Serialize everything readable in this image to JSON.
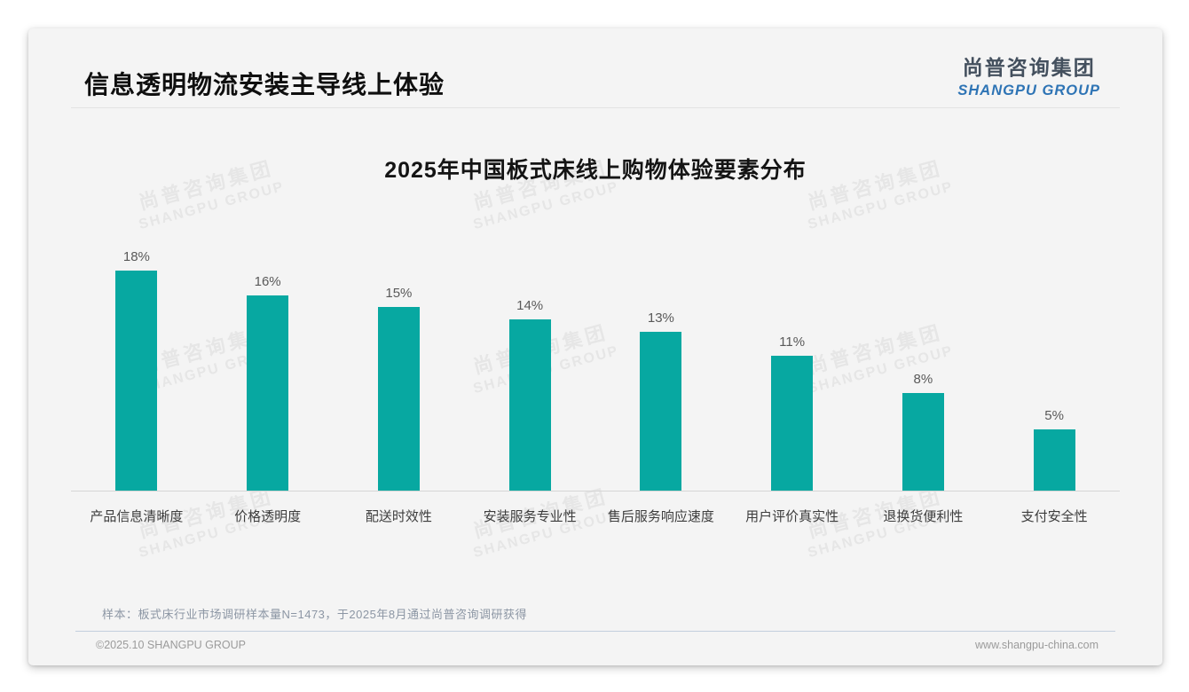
{
  "page": {
    "header": {
      "title": "信息透明物流安装主导线上体验"
    },
    "logo": {
      "cn": "尚普咨询集团",
      "en": "SHANGPU GROUP"
    },
    "watermark": {
      "cn": "尚普咨询集团",
      "en": "SHANGPU GROUP"
    },
    "note": "样本：板式床行业市场调研样本量N=1473，于2025年8月通过尚普咨询调研获得",
    "footer": {
      "left": "©2025.10 SHANGPU GROUP",
      "right": "www.shangpu-china.com"
    }
  },
  "chart_data": {
    "type": "bar",
    "title": "2025年中国板式床线上购物体验要素分布",
    "categories": [
      "产品信息清晰度",
      "价格透明度",
      "配送时效性",
      "安装服务专业性",
      "售后服务响应速度",
      "用户评价真实性",
      "退换货便利性",
      "支付安全性"
    ],
    "values": [
      18,
      16,
      15,
      14,
      13,
      11,
      8,
      5
    ],
    "value_labels": [
      "18%",
      "16%",
      "15%",
      "14%",
      "13%",
      "11%",
      "8%",
      "5%"
    ],
    "unit": "%",
    "xlabel": "",
    "ylabel": "",
    "ylim": [
      0,
      20
    ],
    "grid": false,
    "legend": false,
    "bar_color": "#07a8a1",
    "value_label_color": "#595959"
  },
  "colors": {
    "card_background": "#f4f4f4",
    "accent_teal": "#07a8a1",
    "logo_blue": "#2e74b5",
    "note_gray_blue": "#8c96a4",
    "footer_gray": "#9b9b9b"
  }
}
